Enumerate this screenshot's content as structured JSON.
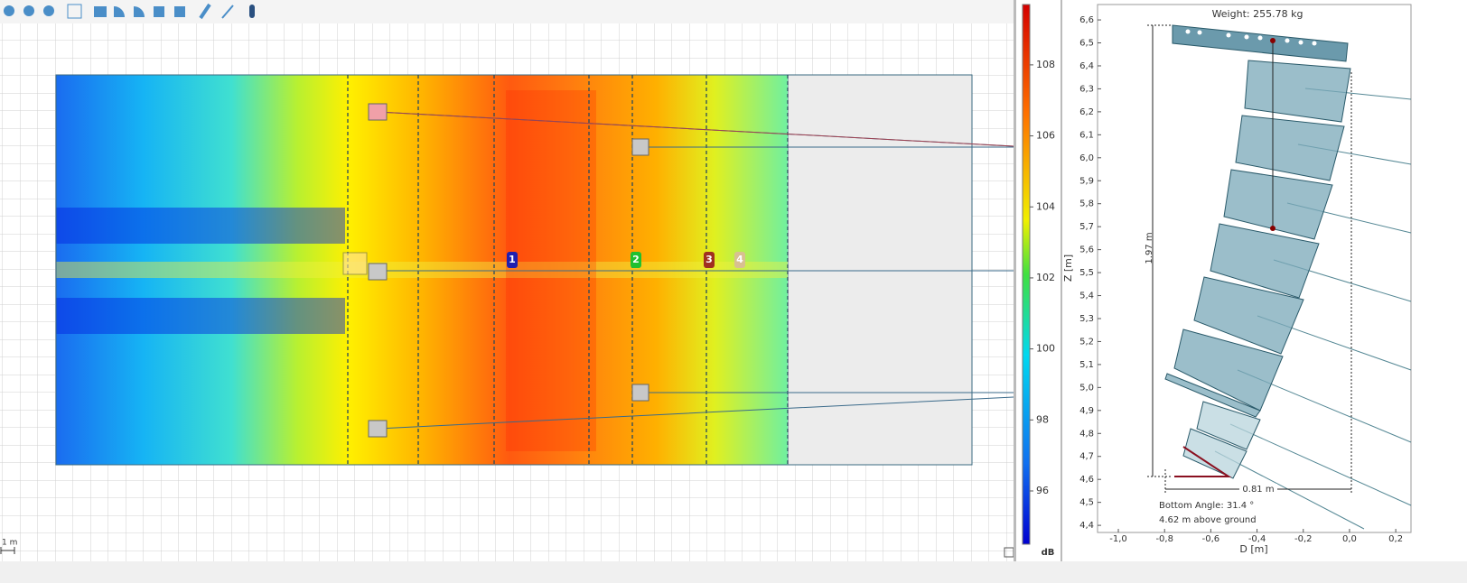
{
  "plan": {
    "scale_label": "1 m",
    "markers": [
      "1",
      "2",
      "3",
      "4"
    ]
  },
  "colorbar": {
    "unit": "dB",
    "ticks": [
      96,
      98,
      100,
      102,
      104,
      106,
      108
    ],
    "lim": [
      94.5,
      109.7
    ]
  },
  "array_view": {
    "weight": "Weight: 255.78 kg",
    "height_label": "1.97 m",
    "width_label": "0.81 m",
    "bottom_angle": "Bottom Angle: 31.4 °",
    "above_ground": "4.62 m above ground",
    "ylabel": "Z [m]",
    "xlabel": "D [m]",
    "ylim": [
      4.369,
      6.667
    ],
    "xlim": [
      -1.09,
      0.266
    ],
    "yticks": [
      {
        "value": 4.4,
        "label": "4,4"
      },
      {
        "value": 4.5,
        "label": "4,5"
      },
      {
        "value": 4.6,
        "label": "4,6"
      },
      {
        "value": 4.7,
        "label": "4,7"
      },
      {
        "value": 4.8,
        "label": "4,8"
      },
      {
        "value": 4.9,
        "label": "4,9"
      },
      {
        "value": 5.0,
        "label": "5,0"
      },
      {
        "value": 5.1,
        "label": "5,1"
      },
      {
        "value": 5.2,
        "label": "5,2"
      },
      {
        "value": 5.3,
        "label": "5,3"
      },
      {
        "value": 5.4,
        "label": "5,4"
      },
      {
        "value": 5.5,
        "label": "5,5"
      },
      {
        "value": 5.6,
        "label": "5,6"
      },
      {
        "value": 5.7,
        "label": "5,7"
      },
      {
        "value": 5.8,
        "label": "5,8"
      },
      {
        "value": 5.9,
        "label": "5,9"
      },
      {
        "value": 6.0,
        "label": "6,0"
      },
      {
        "value": 6.1,
        "label": "6,1"
      },
      {
        "value": 6.2,
        "label": "6,2"
      },
      {
        "value": 6.3,
        "label": "6,3"
      },
      {
        "value": 6.4,
        "label": "6,4"
      },
      {
        "value": 6.5,
        "label": "6,5"
      },
      {
        "value": 6.6,
        "label": "6,6"
      }
    ],
    "xticks": [
      {
        "value": -1.0,
        "label": "-1,0"
      },
      {
        "value": -0.8,
        "label": "-0,8"
      },
      {
        "value": -0.6,
        "label": "-0,6"
      },
      {
        "value": -0.4,
        "label": "-0,4"
      },
      {
        "value": -0.2,
        "label": "-0,2"
      },
      {
        "value": 0.0,
        "label": "0,0"
      },
      {
        "value": 0.2,
        "label": "0,2"
      }
    ]
  }
}
